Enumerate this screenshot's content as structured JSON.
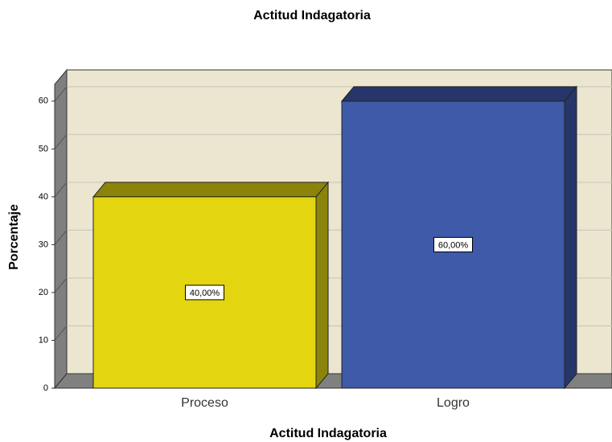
{
  "chart_data": {
    "type": "bar3d",
    "title": "Actitud Indagatoria",
    "x_label": "Actitud Indagatoria",
    "y_label": "Porcentaje",
    "categories": [
      "Proceso",
      "Logro"
    ],
    "values": [
      40,
      60
    ],
    "value_labels": [
      "40,00%",
      "60,00%"
    ],
    "colors": [
      "#e3d50f",
      "#3e5aa8"
    ],
    "side_colors": [
      "#8c840a",
      "#26366a"
    ],
    "ylim": [
      0,
      63.5
    ],
    "yticks": [
      0,
      10,
      20,
      30,
      40,
      50,
      60
    ],
    "grid": true
  }
}
